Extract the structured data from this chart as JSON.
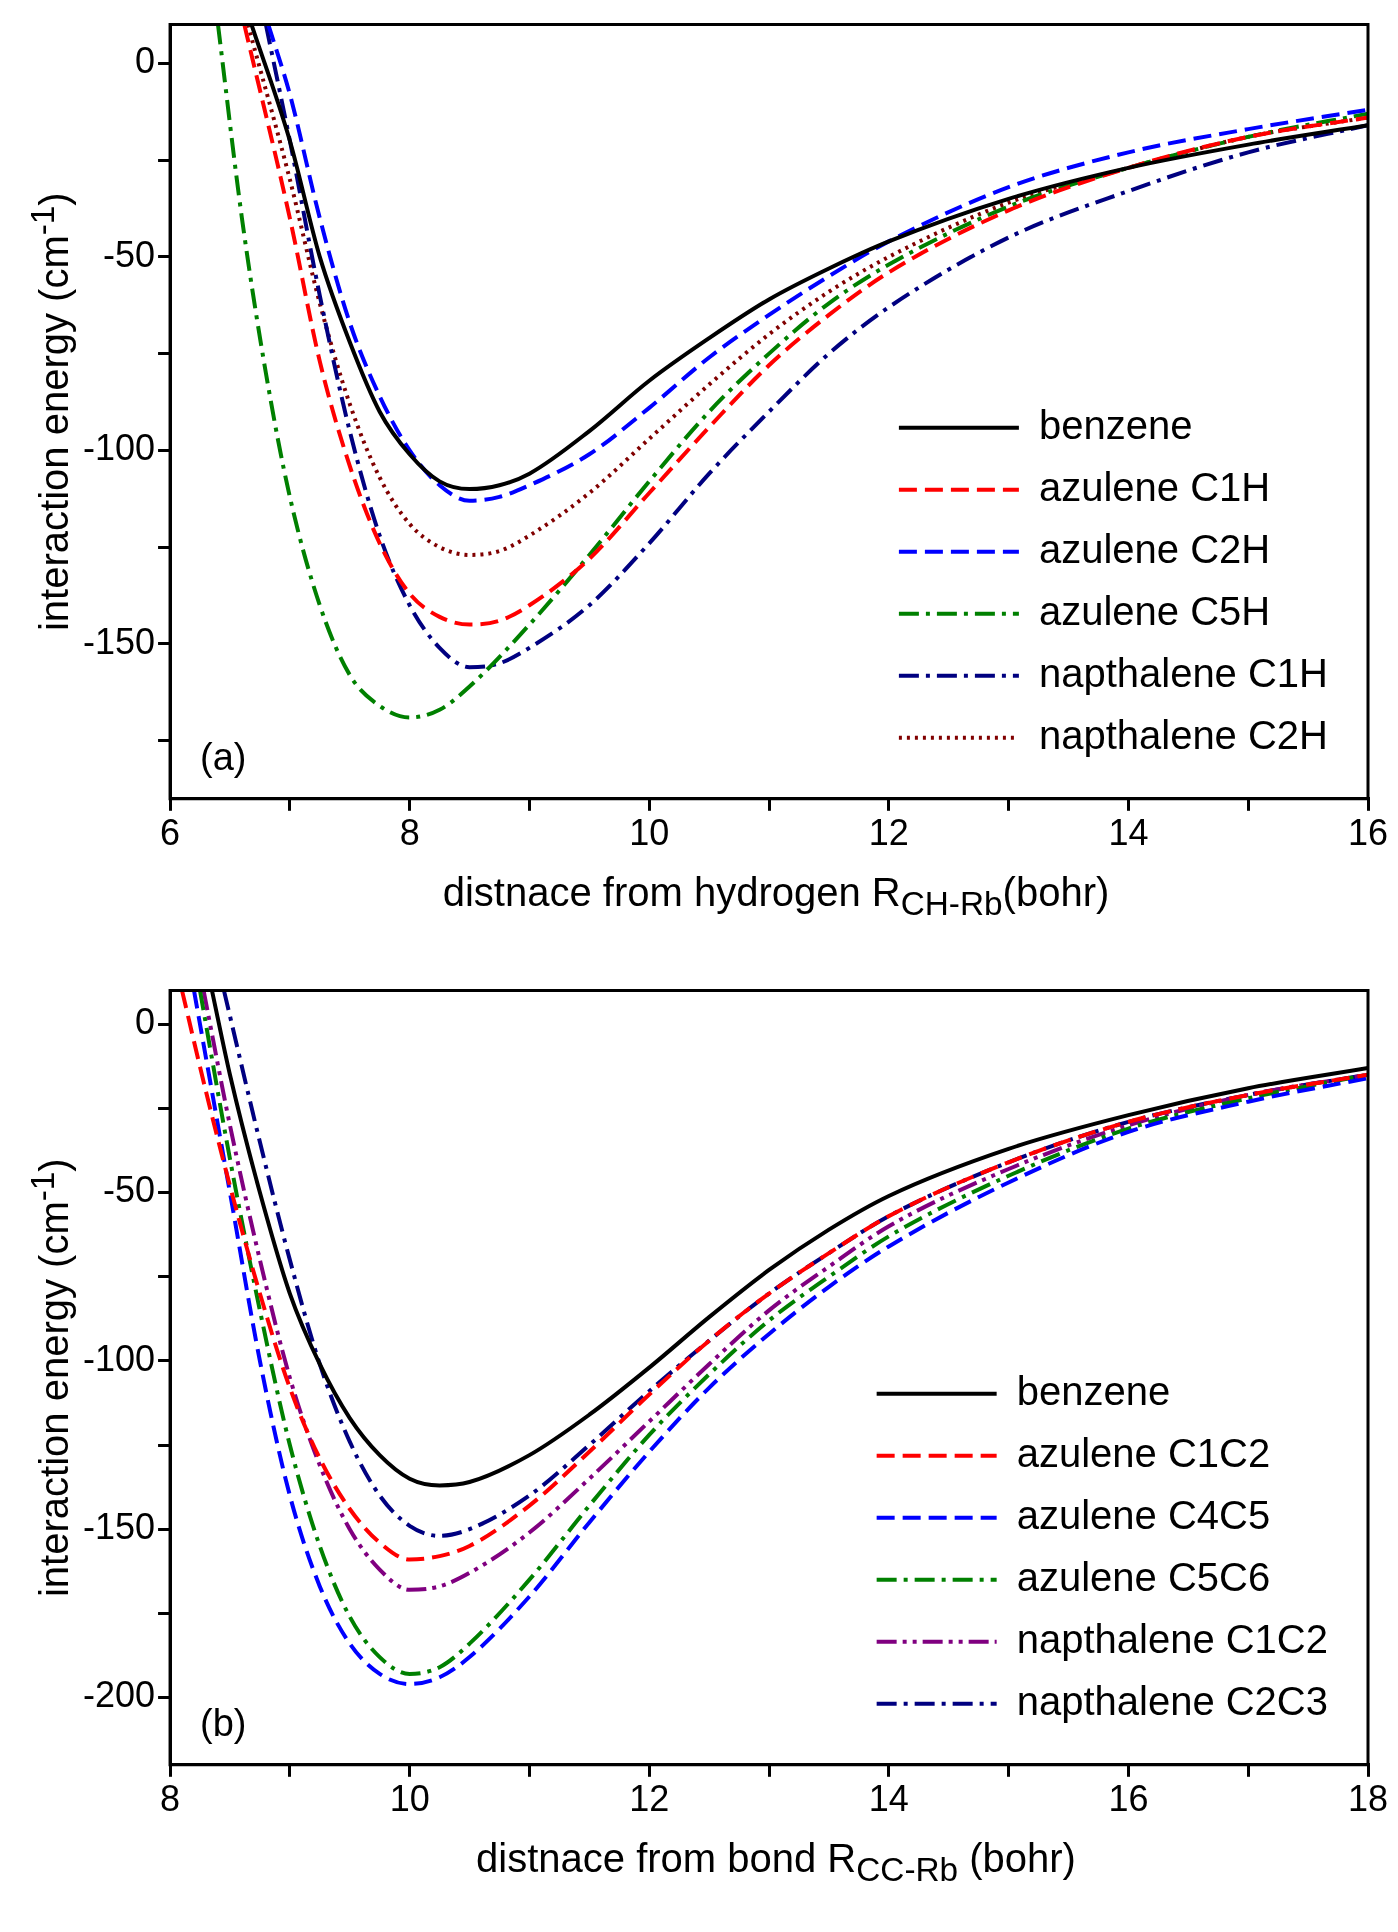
{
  "chart_data": [
    {
      "type": "line",
      "xlabel": "distnace from hydrogen  R$_{CH-Rb}$(bohr)",
      "ylabel": "interaction energy (cm$^{-1}$)",
      "annotations": [
        "(a)"
      ],
      "xlim": [
        6,
        16
      ],
      "ylim": [
        -190,
        10
      ],
      "xticks": [
        6,
        {
          "value": 7,
          "label": null
        },
        8,
        {
          "value": 9,
          "label": null
        },
        10,
        {
          "value": 11,
          "label": null
        },
        12,
        {
          "value": 13,
          "label": null
        },
        14,
        {
          "value": 15,
          "label": null
        },
        16
      ],
      "yticks": [
        {
          "value": -175,
          "label": null
        },
        -150,
        {
          "value": -125,
          "label": null
        },
        -100,
        {
          "value": -75,
          "label": null
        },
        -50,
        {
          "value": -25,
          "label": null
        },
        0
      ],
      "grid": false,
      "legend": "bottom right",
      "marker": "none",
      "series": [
        {
          "name": "benzene",
          "color": "#000000",
          "line_style": "solid",
          "x": [
            6.68,
            7,
            7.25,
            7.5,
            7.75,
            8,
            8.25,
            8.5,
            8.75,
            9,
            9.5,
            10,
            10.5,
            11,
            11.5,
            12,
            13,
            14,
            15,
            16
          ],
          "values": [
            10,
            -20,
            -50,
            -72,
            -90,
            -101,
            -108,
            -110,
            -109,
            -106,
            -95,
            -82,
            -71,
            -61,
            -53,
            -46,
            -35,
            -27,
            -21,
            -16
          ]
        },
        {
          "name": "azulene C1H",
          "color": "#ff0000",
          "line_style": "dashed",
          "x": [
            6.62,
            7,
            7.25,
            7.5,
            7.75,
            8,
            8.25,
            8.5,
            8.75,
            9,
            9.5,
            10,
            10.5,
            11,
            11.5,
            12,
            13,
            14,
            15,
            16
          ],
          "values": [
            10,
            -40,
            -77,
            -104,
            -124,
            -137,
            -143,
            -145,
            -144,
            -140,
            -128,
            -111,
            -94,
            -78,
            -65,
            -54,
            -38,
            -27,
            -19,
            -14
          ]
        },
        {
          "name": "azulene C2H",
          "color": "#0000ff",
          "line_style": "dashed",
          "x": [
            6.82,
            7,
            7.25,
            7.5,
            7.75,
            8,
            8.25,
            8.5,
            8.75,
            9,
            9.5,
            10,
            10.5,
            11,
            11.5,
            12,
            13,
            14,
            15,
            16
          ],
          "values": [
            10,
            -8,
            -40,
            -67,
            -86,
            -100,
            -109,
            -113,
            -112,
            -109,
            -101,
            -89,
            -76,
            -65,
            -55,
            -46,
            -32,
            -23,
            -17,
            -12
          ]
        },
        {
          "name": "azulene C5H",
          "color": "#008000",
          "line_style": "dashdot",
          "x": [
            6.4,
            6.6,
            6.8,
            7,
            7.25,
            7.5,
            7.75,
            8,
            8.25,
            8.5,
            9,
            9.5,
            10,
            10.5,
            11,
            11.5,
            12,
            13,
            14,
            15,
            16
          ],
          "values": [
            10,
            -40,
            -80,
            -112,
            -140,
            -158,
            -166,
            -169,
            -167,
            -161,
            -145,
            -127,
            -108,
            -90,
            -75,
            -62,
            -52,
            -37,
            -27,
            -19,
            -13
          ]
        },
        {
          "name": "napthalene C1H",
          "color": "#000080",
          "line_style": "dashdot",
          "x": [
            6.8,
            7,
            7.25,
            7.5,
            7.75,
            8,
            8.25,
            8.5,
            8.75,
            9,
            9.5,
            10,
            10.5,
            11,
            11.5,
            12,
            13,
            14,
            15,
            16
          ],
          "values": [
            10,
            -20,
            -60,
            -95,
            -122,
            -140,
            -151,
            -156,
            -155,
            -151,
            -140,
            -124,
            -106,
            -90,
            -75,
            -63,
            -45,
            -33,
            -23,
            -16
          ]
        },
        {
          "name": "napthalene C2H",
          "color": "#800000",
          "line_style": "dotted",
          "x": [
            6.65,
            7,
            7.25,
            7.5,
            7.75,
            8,
            8.25,
            8.5,
            8.75,
            9,
            9.5,
            10,
            10.5,
            11,
            11.5,
            12,
            13,
            14,
            15,
            16
          ],
          "values": [
            10,
            -30,
            -62,
            -88,
            -107,
            -119,
            -125,
            -127,
            -126,
            -122,
            -111,
            -97,
            -83,
            -70,
            -59,
            -50,
            -36,
            -27,
            -19,
            -14
          ]
        }
      ]
    },
    {
      "type": "line",
      "xlabel": "distnace from bond  R$_{CC-Rb}$ (bohr)",
      "ylabel": "interaction energy (cm$^{-1}$)",
      "annotations": [
        "(b)"
      ],
      "xlim": [
        8,
        18
      ],
      "ylim": [
        -220,
        10
      ],
      "xticks": [
        8,
        {
          "value": 9,
          "label": null
        },
        10,
        {
          "value": 11,
          "label": null
        },
        12,
        {
          "value": 13,
          "label": null
        },
        14,
        {
          "value": 15,
          "label": null
        },
        16,
        {
          "value": 17,
          "label": null
        },
        18
      ],
      "yticks": [
        -200,
        {
          "value": -175,
          "label": null
        },
        -150,
        {
          "value": -125,
          "label": null
        },
        -100,
        {
          "value": -75,
          "label": null
        },
        -50,
        {
          "value": -25,
          "label": null
        },
        0
      ],
      "grid": false,
      "legend": "bottom right",
      "marker": "none",
      "series": [
        {
          "name": "benzene",
          "color": "#000000",
          "line_style": "solid",
          "x": [
            8.35,
            8.5,
            8.75,
            9,
            9.25,
            9.5,
            9.75,
            10,
            10.25,
            10.5,
            11,
            11.5,
            12,
            12.5,
            13,
            13.5,
            14,
            15,
            16,
            17,
            18
          ],
          "values": [
            10,
            -15,
            -50,
            -80,
            -101,
            -117,
            -128,
            -135,
            -137,
            -136,
            -128,
            -116,
            -102,
            -87,
            -73,
            -61,
            -51,
            -37,
            -27,
            -19,
            -13
          ]
        },
        {
          "name": "azulene C1C2",
          "color": "#ff0000",
          "line_style": "dashed",
          "x": [
            8.1,
            8.3,
            8.5,
            8.75,
            9,
            9.25,
            9.5,
            9.75,
            10,
            10.25,
            10.5,
            11,
            11.5,
            12,
            12.5,
            13,
            13.5,
            14,
            15,
            16,
            17,
            18
          ],
          "values": [
            10,
            -20,
            -48,
            -80,
            -108,
            -129,
            -144,
            -154,
            -159,
            -158,
            -155,
            -143,
            -127,
            -110,
            -94,
            -80,
            -68,
            -57,
            -41,
            -29,
            -21,
            -15
          ]
        },
        {
          "name": "azulene C4C5",
          "color": "#0000ff",
          "line_style": "dashed",
          "x": [
            8.2,
            8.5,
            8.75,
            9,
            9.25,
            9.5,
            9.75,
            10,
            10.25,
            10.5,
            11,
            11.5,
            12,
            12.5,
            13,
            13.5,
            14,
            15,
            16,
            17,
            18
          ],
          "values": [
            10,
            -50,
            -100,
            -140,
            -167,
            -184,
            -193,
            -196,
            -194,
            -188,
            -170,
            -148,
            -127,
            -108,
            -92,
            -78,
            -66,
            -47,
            -32,
            -23,
            -16
          ]
        },
        {
          "name": "azulene C5C6",
          "color": "#008000",
          "line_style": "dashdot",
          "x": [
            8.25,
            8.5,
            8.75,
            9,
            9.25,
            9.5,
            9.75,
            10,
            10.25,
            10.5,
            11,
            11.5,
            12,
            12.5,
            13,
            13.5,
            14,
            15,
            16,
            17,
            18
          ],
          "values": [
            10,
            -40,
            -85,
            -125,
            -155,
            -176,
            -188,
            -193,
            -191,
            -184,
            -165,
            -143,
            -122,
            -104,
            -88,
            -75,
            -63,
            -45,
            -31,
            -22,
            -15
          ]
        },
        {
          "name": "napthalene C1C2",
          "color": "#800080",
          "line_style": "dashdotdot",
          "x": [
            8.28,
            8.5,
            8.75,
            9,
            9.25,
            9.5,
            9.75,
            10,
            10.25,
            10.5,
            11,
            11.5,
            12,
            12.5,
            13,
            13.5,
            14,
            15,
            16,
            17,
            18
          ],
          "values": [
            10,
            -30,
            -70,
            -105,
            -131,
            -150,
            -162,
            -168,
            -167,
            -163,
            -151,
            -135,
            -118,
            -101,
            -85,
            -72,
            -60,
            -43,
            -30,
            -21,
            -15
          ]
        },
        {
          "name": "napthalene C2C3",
          "color": "#000080",
          "line_style": "dashdot",
          "x": [
            8.45,
            8.75,
            9,
            9.25,
            9.5,
            9.75,
            10,
            10.25,
            10.5,
            11,
            11.5,
            12,
            12.5,
            13,
            13.5,
            14,
            15,
            16,
            17,
            18
          ],
          "values": [
            10,
            -35,
            -70,
            -101,
            -124,
            -140,
            -149,
            -152,
            -150,
            -140,
            -125,
            -109,
            -94,
            -80,
            -68,
            -57,
            -41,
            -29,
            -21,
            -15
          ]
        }
      ]
    }
  ]
}
